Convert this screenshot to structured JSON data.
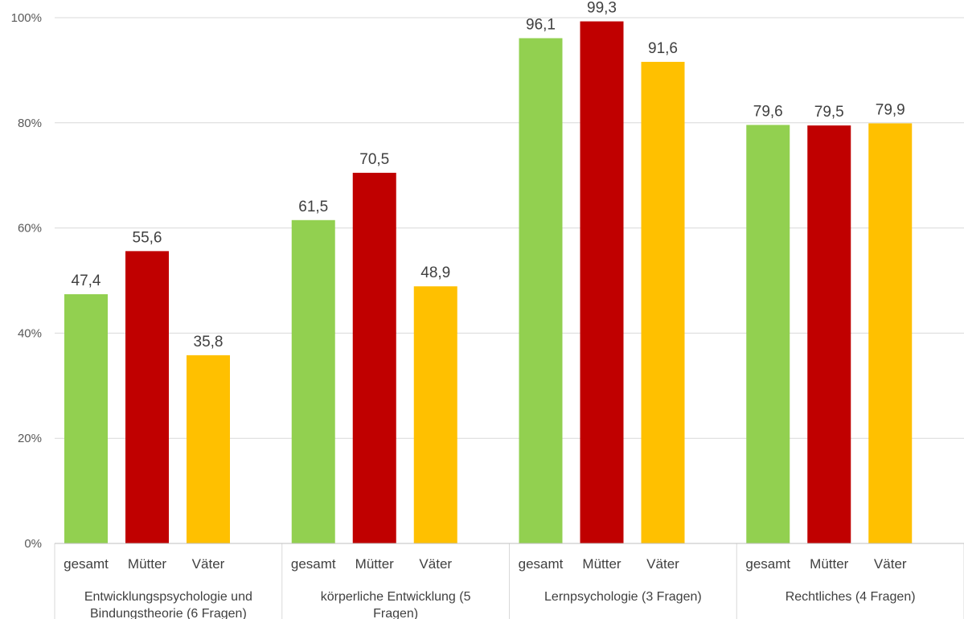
{
  "chart_data": {
    "type": "bar",
    "title": "",
    "xlabel": "",
    "ylabel": "",
    "ylim": [
      0,
      100
    ],
    "y_ticks": [
      "0%",
      "20%",
      "40%",
      "60%",
      "80%",
      "100%"
    ],
    "grid": true,
    "legend": "none",
    "categories": [
      [
        "Entwicklungspsychologie und",
        "Bindungstheorie (6 Fragen)"
      ],
      [
        "körperliche Entwicklung (5",
        "Fragen)"
      ],
      [
        "Lernpsychologie (3 Fragen)"
      ],
      [
        "Rechtliches (4 Fragen)"
      ]
    ],
    "series": [
      {
        "name": "gesamt",
        "color": "#92d050",
        "values": [
          47.4,
          61.5,
          96.1,
          79.6
        ],
        "labels": [
          "47,4",
          "61,5",
          "96,1",
          "79,6"
        ]
      },
      {
        "name": "Mütter",
        "color": "#c00000",
        "values": [
          55.6,
          70.5,
          99.3,
          79.5
        ],
        "labels": [
          "55,6",
          "70,5",
          "99,3",
          "79,5"
        ]
      },
      {
        "name": "Väter",
        "color": "#ffc000",
        "values": [
          35.8,
          48.9,
          91.6,
          79.9
        ],
        "labels": [
          "35,8",
          "48,9",
          "91,6",
          "79,9"
        ]
      }
    ]
  }
}
